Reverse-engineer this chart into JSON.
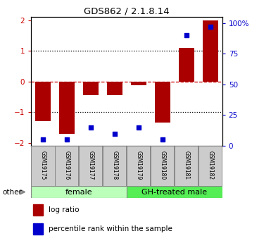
{
  "title": "GDS862 / 2.1.8.14",
  "samples": [
    "GSM19175",
    "GSM19176",
    "GSM19177",
    "GSM19178",
    "GSM19179",
    "GSM19180",
    "GSM19181",
    "GSM19182"
  ],
  "log_ratio": [
    -1.3,
    -1.7,
    -0.45,
    -0.45,
    -0.12,
    -1.35,
    1.1,
    2.0
  ],
  "percentile_rank": [
    5,
    5,
    15,
    10,
    15,
    5,
    90,
    97
  ],
  "ylim": [
    -2.1,
    2.1
  ],
  "y2lim": [
    0,
    105
  ],
  "yticks": [
    -2,
    -1,
    0,
    1,
    2
  ],
  "y2ticks": [
    0,
    25,
    50,
    75,
    100
  ],
  "y2ticklabels": [
    "0",
    "25",
    "50",
    "75",
    "100%"
  ],
  "bar_color": "#aa0000",
  "dot_color": "#0000cc",
  "female_color": "#bbffbb",
  "male_color": "#55ee55",
  "female_label": "female",
  "male_label": "GH-treated male",
  "legend_logratio": "log ratio",
  "legend_percentile": "percentile rank within the sample",
  "other_label": "other",
  "hline0_color": "#cc0000",
  "dotted_color": "black",
  "sample_box_color": "#cccccc",
  "background_color": "#ffffff"
}
